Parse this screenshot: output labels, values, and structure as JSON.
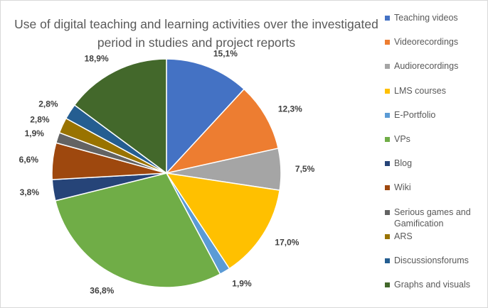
{
  "chart_data": {
    "type": "pie",
    "title": "Use of digital teaching and learning activities over the investigated period in studies and project reports",
    "legend_position": "right",
    "slices": [
      {
        "name": "Teaching videos",
        "value": 15.1,
        "label": "15,1%",
        "color": "#4472C4"
      },
      {
        "name": "Videorecordings",
        "value": 12.3,
        "label": "12,3%",
        "color": "#ED7D31"
      },
      {
        "name": "Audiorecordings",
        "value": 7.5,
        "label": "7,5%",
        "color": "#A5A5A5"
      },
      {
        "name": "LMS courses",
        "value": 17.0,
        "label": "17,0%",
        "color": "#FFC000"
      },
      {
        "name": "E-Portfolio",
        "value": 1.9,
        "label": "1,9%",
        "color": "#5B9BD5"
      },
      {
        "name": "VPs",
        "value": 36.8,
        "label": "36,8%",
        "color": "#70AD47"
      },
      {
        "name": "Blog",
        "value": 3.8,
        "label": "3,8%",
        "color": "#264478"
      },
      {
        "name": "Wiki",
        "value": 6.6,
        "label": "6,6%",
        "color": "#9E480E"
      },
      {
        "name": "Serious games and Gamification",
        "value": 1.9,
        "label": "1,9%",
        "color": "#636363"
      },
      {
        "name": "ARS",
        "value": 2.8,
        "label": "2,8%",
        "color": "#997300"
      },
      {
        "name": "Discussionsforums",
        "value": 2.8,
        "label": "2,8%",
        "color": "#255E91"
      },
      {
        "name": "Graphs and visuals",
        "value": 18.9,
        "label": "18,9%",
        "color": "#43682B"
      }
    ]
  }
}
